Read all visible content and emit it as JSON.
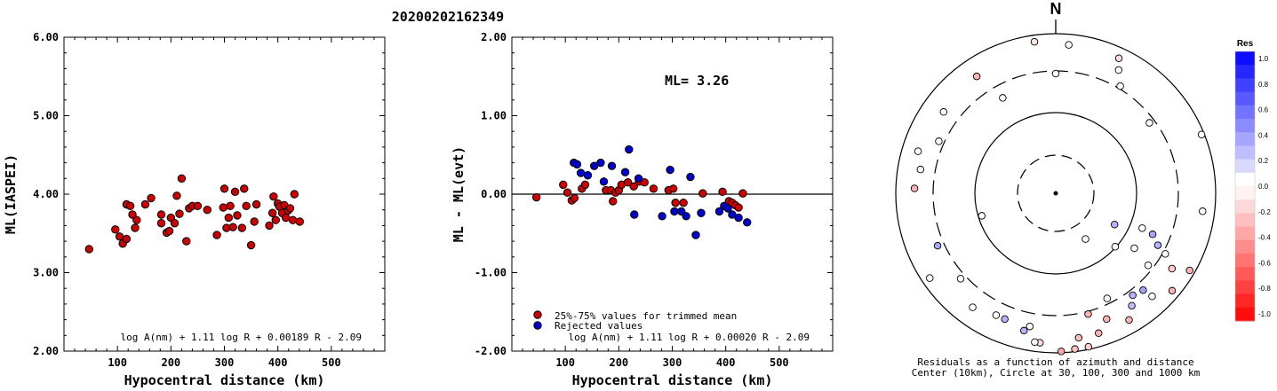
{
  "title": "20200202162349",
  "chart_data": [
    {
      "type": "scatter",
      "ylabel": "ML(IASPEI)",
      "xlabel": "Hypocentral distance (km)",
      "xlim": [
        0,
        600
      ],
      "ylim": [
        2,
        6
      ],
      "xticks": [
        "100",
        "200",
        "300",
        "400",
        "500"
      ],
      "yticks": [
        "2.00",
        "3.00",
        "4.00",
        "5.00",
        "6.00"
      ],
      "formula": "log A(nm) + 1.11 log R + 0.00189 R - 2.09",
      "marker_color": "#cc0000",
      "points": [
        [
          47,
          3.3
        ],
        [
          96,
          3.55
        ],
        [
          104,
          3.46
        ],
        [
          110,
          3.37
        ],
        [
          117,
          3.43
        ],
        [
          117,
          3.87
        ],
        [
          124,
          3.85
        ],
        [
          128,
          3.74
        ],
        [
          133,
          3.57
        ],
        [
          136,
          3.67
        ],
        [
          152,
          3.87
        ],
        [
          163,
          3.95
        ],
        [
          182,
          3.63
        ],
        [
          182,
          3.74
        ],
        [
          192,
          3.51
        ],
        [
          197,
          3.53
        ],
        [
          200,
          3.7
        ],
        [
          207,
          3.63
        ],
        [
          211,
          3.98
        ],
        [
          216,
          3.75
        ],
        [
          220,
          4.2
        ],
        [
          229,
          3.4
        ],
        [
          234,
          3.82
        ],
        [
          240,
          3.85
        ],
        [
          250,
          3.85
        ],
        [
          268,
          3.8
        ],
        [
          286,
          3.48
        ],
        [
          298,
          3.83
        ],
        [
          300,
          4.07
        ],
        [
          304,
          3.57
        ],
        [
          308,
          3.7
        ],
        [
          311,
          3.85
        ],
        [
          316,
          3.58
        ],
        [
          320,
          4.03
        ],
        [
          324,
          3.73
        ],
        [
          333,
          3.57
        ],
        [
          337,
          4.07
        ],
        [
          341,
          3.85
        ],
        [
          350,
          3.35
        ],
        [
          356,
          3.65
        ],
        [
          360,
          3.87
        ],
        [
          384,
          3.6
        ],
        [
          390,
          3.76
        ],
        [
          392,
          3.97
        ],
        [
          396,
          3.67
        ],
        [
          400,
          3.88
        ],
        [
          403,
          3.84
        ],
        [
          408,
          3.76
        ],
        [
          412,
          3.86
        ],
        [
          415,
          3.7
        ],
        [
          419,
          3.79
        ],
        [
          423,
          3.82
        ],
        [
          428,
          3.67
        ],
        [
          431,
          4.0
        ],
        [
          441,
          3.65
        ]
      ]
    },
    {
      "type": "scatter",
      "ylabel": "ML - ML(evt)",
      "xlabel": "Hypocentral distance (km)",
      "xlim": [
        0,
        600
      ],
      "ylim": [
        -2,
        2
      ],
      "xticks": [
        "100",
        "200",
        "300",
        "400",
        "500"
      ],
      "yticks": [
        "-2.00",
        "-1.00",
        "0.00",
        "1.00",
        "2.00"
      ],
      "annotation": "ML= 3.26",
      "formula": "log A(nm) + 1.11 log R + 0.00020 R - 2.09",
      "legend": [
        "25%-75% values for trimmed mean",
        "Rejected values"
      ],
      "series_colors": [
        "#cc0000",
        "#0000cc"
      ],
      "trimmed": [
        [
          46,
          -0.04
        ],
        [
          96,
          0.12
        ],
        [
          104,
          0.02
        ],
        [
          112,
          -0.08
        ],
        [
          117,
          -0.05
        ],
        [
          131,
          0.07
        ],
        [
          137,
          0.12
        ],
        [
          176,
          0.05
        ],
        [
          185,
          0.05
        ],
        [
          189,
          -0.09
        ],
        [
          194,
          0.02
        ],
        [
          200,
          0.05
        ],
        [
          205,
          0.12
        ],
        [
          217,
          0.15
        ],
        [
          228,
          0.1
        ],
        [
          238,
          0.16
        ],
        [
          248,
          0.15
        ],
        [
          265,
          0.07
        ],
        [
          293,
          0.05
        ],
        [
          302,
          0.07
        ],
        [
          306,
          -0.11
        ],
        [
          321,
          -0.11
        ],
        [
          357,
          0.01
        ],
        [
          394,
          0.03
        ],
        [
          406,
          -0.09
        ],
        [
          412,
          -0.11
        ],
        [
          418,
          -0.14
        ],
        [
          424,
          -0.17
        ],
        [
          432,
          0.01
        ]
      ],
      "rejected": [
        [
          116,
          0.4
        ],
        [
          122,
          0.38
        ],
        [
          129,
          0.27
        ],
        [
          142,
          0.24
        ],
        [
          154,
          0.36
        ],
        [
          166,
          0.4
        ],
        [
          172,
          0.16
        ],
        [
          187,
          0.36
        ],
        [
          212,
          0.28
        ],
        [
          219,
          0.57
        ],
        [
          229,
          -0.26
        ],
        [
          237,
          0.2
        ],
        [
          281,
          -0.28
        ],
        [
          296,
          0.31
        ],
        [
          304,
          -0.22
        ],
        [
          317,
          -0.22
        ],
        [
          326,
          -0.28
        ],
        [
          334,
          0.22
        ],
        [
          344,
          -0.52
        ],
        [
          354,
          -0.24
        ],
        [
          388,
          -0.22
        ],
        [
          397,
          -0.15
        ],
        [
          404,
          -0.18
        ],
        [
          412,
          -0.26
        ],
        [
          424,
          -0.3
        ],
        [
          440,
          -0.36
        ]
      ]
    },
    {
      "type": "scatter",
      "subtype": "polar",
      "north_label": "N",
      "caption": [
        "Residuals as a function of azimuth and distance",
        "Center (10km), Circle at 30, 100, 300 and 1000 km"
      ],
      "colorbar_title": "Res",
      "colorbar_ticks": [
        "1.0",
        "0.8",
        "0.6",
        "0.4",
        "0.2",
        "0.0",
        "-0.2",
        "-0.4",
        "-0.6",
        "-0.8",
        "-1.0"
      ],
      "points": [
        {
          "az": 352,
          "dist": 575,
          "res": -0.1
        },
        {
          "az": 5,
          "dist": 560,
          "res": 0.0
        },
        {
          "az": 0,
          "dist": 450,
          "res": 0.0
        },
        {
          "az": 25,
          "dist": 560,
          "res": -0.15
        },
        {
          "az": 27,
          "dist": 520,
          "res": 0.0
        },
        {
          "az": 31,
          "dist": 470,
          "res": 0.0
        },
        {
          "az": 53,
          "dist": 440,
          "res": 0.0
        },
        {
          "az": 68,
          "dist": 590,
          "res": 0.0
        },
        {
          "az": 97,
          "dist": 555,
          "res": 0.0
        },
        {
          "az": 112,
          "dist": 350,
          "res": 0.0
        },
        {
          "az": 118,
          "dist": 250,
          "res": 0.3
        },
        {
          "az": 113,
          "dist": 395,
          "res": 0.35
        },
        {
          "az": 117,
          "dist": 430,
          "res": 0.3
        },
        {
          "az": 119,
          "dist": 470,
          "res": 0.0
        },
        {
          "az": 120,
          "dist": 580,
          "res": -0.3
        },
        {
          "az": 123,
          "dist": 520,
          "res": -0.2
        },
        {
          "az": 125,
          "dist": 360,
          "res": 0.0
        },
        {
          "az": 128,
          "dist": 440,
          "res": 0.0
        },
        {
          "az": 130,
          "dist": 570,
          "res": -0.3
        },
        {
          "az": 132,
          "dist": 300,
          "res": 0.0
        },
        {
          "az": 137,
          "dist": 530,
          "res": 0.0
        },
        {
          "az": 138,
          "dist": 490,
          "res": 0.35
        },
        {
          "az": 143,
          "dist": 480,
          "res": 0.3
        },
        {
          "az": 146,
          "dist": 510,
          "res": 0.25
        },
        {
          "az": 150,
          "dist": 550,
          "res": -0.3
        },
        {
          "az": 147,
          "dist": 205,
          "res": 0.0
        },
        {
          "az": 154,
          "dist": 440,
          "res": 0.0
        },
        {
          "az": 158,
          "dist": 510,
          "res": -0.3
        },
        {
          "az": 163,
          "dist": 550,
          "res": -0.3
        },
        {
          "az": 165,
          "dist": 470,
          "res": -0.3
        },
        {
          "az": 168,
          "dist": 590,
          "res": -0.2
        },
        {
          "az": 171,
          "dist": 550,
          "res": -0.25
        },
        {
          "az": 173,
          "dist": 590,
          "res": -0.25
        },
        {
          "az": 178,
          "dist": 595,
          "res": -0.35
        },
        {
          "az": 186,
          "dist": 565,
          "res": -0.15
        },
        {
          "az": 188,
          "dist": 565,
          "res": 0.0
        },
        {
          "az": 191,
          "dist": 510,
          "res": 0.0
        },
        {
          "az": 193,
          "dist": 530,
          "res": 0.3
        },
        {
          "az": 202,
          "dist": 510,
          "res": 0.3
        },
        {
          "az": 206,
          "dist": 510,
          "res": 0.0
        },
        {
          "az": 216,
          "dist": 530,
          "res": 0.0
        },
        {
          "az": 228,
          "dist": 480,
          "res": 0.0
        },
        {
          "az": 236,
          "dist": 570,
          "res": 0.0
        },
        {
          "az": 246,
          "dist": 485,
          "res": 0.35
        },
        {
          "az": 253,
          "dist": 290,
          "res": 0.0
        },
        {
          "az": 272,
          "dist": 530,
          "res": -0.3
        },
        {
          "az": 280,
          "dist": 515,
          "res": 0.0
        },
        {
          "az": 287,
          "dist": 540,
          "res": 0.0
        },
        {
          "az": 294,
          "dist": 480,
          "res": 0.0
        },
        {
          "az": 306,
          "dist": 520,
          "res": 0.0
        },
        {
          "az": 326,
          "dist": 530,
          "res": -0.3
        },
        {
          "az": 331,
          "dist": 410,
          "res": 0.0
        }
      ]
    }
  ]
}
